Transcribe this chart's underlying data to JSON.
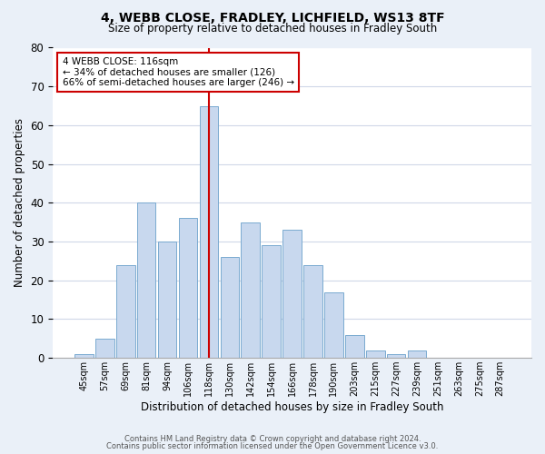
{
  "title_line1": "4, WEBB CLOSE, FRADLEY, LICHFIELD, WS13 8TF",
  "title_line2": "Size of property relative to detached houses in Fradley South",
  "xlabel": "Distribution of detached houses by size in Fradley South",
  "ylabel": "Number of detached properties",
  "footnote1": "Contains HM Land Registry data © Crown copyright and database right 2024.",
  "footnote2": "Contains public sector information licensed under the Open Government Licence v3.0.",
  "bar_labels": [
    "45sqm",
    "57sqm",
    "69sqm",
    "81sqm",
    "94sqm",
    "106sqm",
    "118sqm",
    "130sqm",
    "142sqm",
    "154sqm",
    "166sqm",
    "178sqm",
    "190sqm",
    "203sqm",
    "215sqm",
    "227sqm",
    "239sqm",
    "251sqm",
    "263sqm",
    "275sqm",
    "287sqm"
  ],
  "bar_values": [
    1,
    5,
    24,
    40,
    30,
    36,
    65,
    26,
    35,
    29,
    33,
    24,
    17,
    6,
    2,
    1,
    2,
    0,
    0,
    0,
    0
  ],
  "bar_color": "#c8d8ee",
  "bar_edge_color": "#7aaad0",
  "highlight_index": 6,
  "highlight_line_color": "#cc0000",
  "annotation_text": "4 WEBB CLOSE: 116sqm\n← 34% of detached houses are smaller (126)\n66% of semi-detached houses are larger (246) →",
  "annotation_box_edge_color": "#cc0000",
  "ylim": [
    0,
    80
  ],
  "yticks": [
    0,
    10,
    20,
    30,
    40,
    50,
    60,
    70,
    80
  ],
  "grid_color": "#d0d8e8",
  "background_color": "#eaf0f8",
  "plot_bg_color": "#ffffff"
}
